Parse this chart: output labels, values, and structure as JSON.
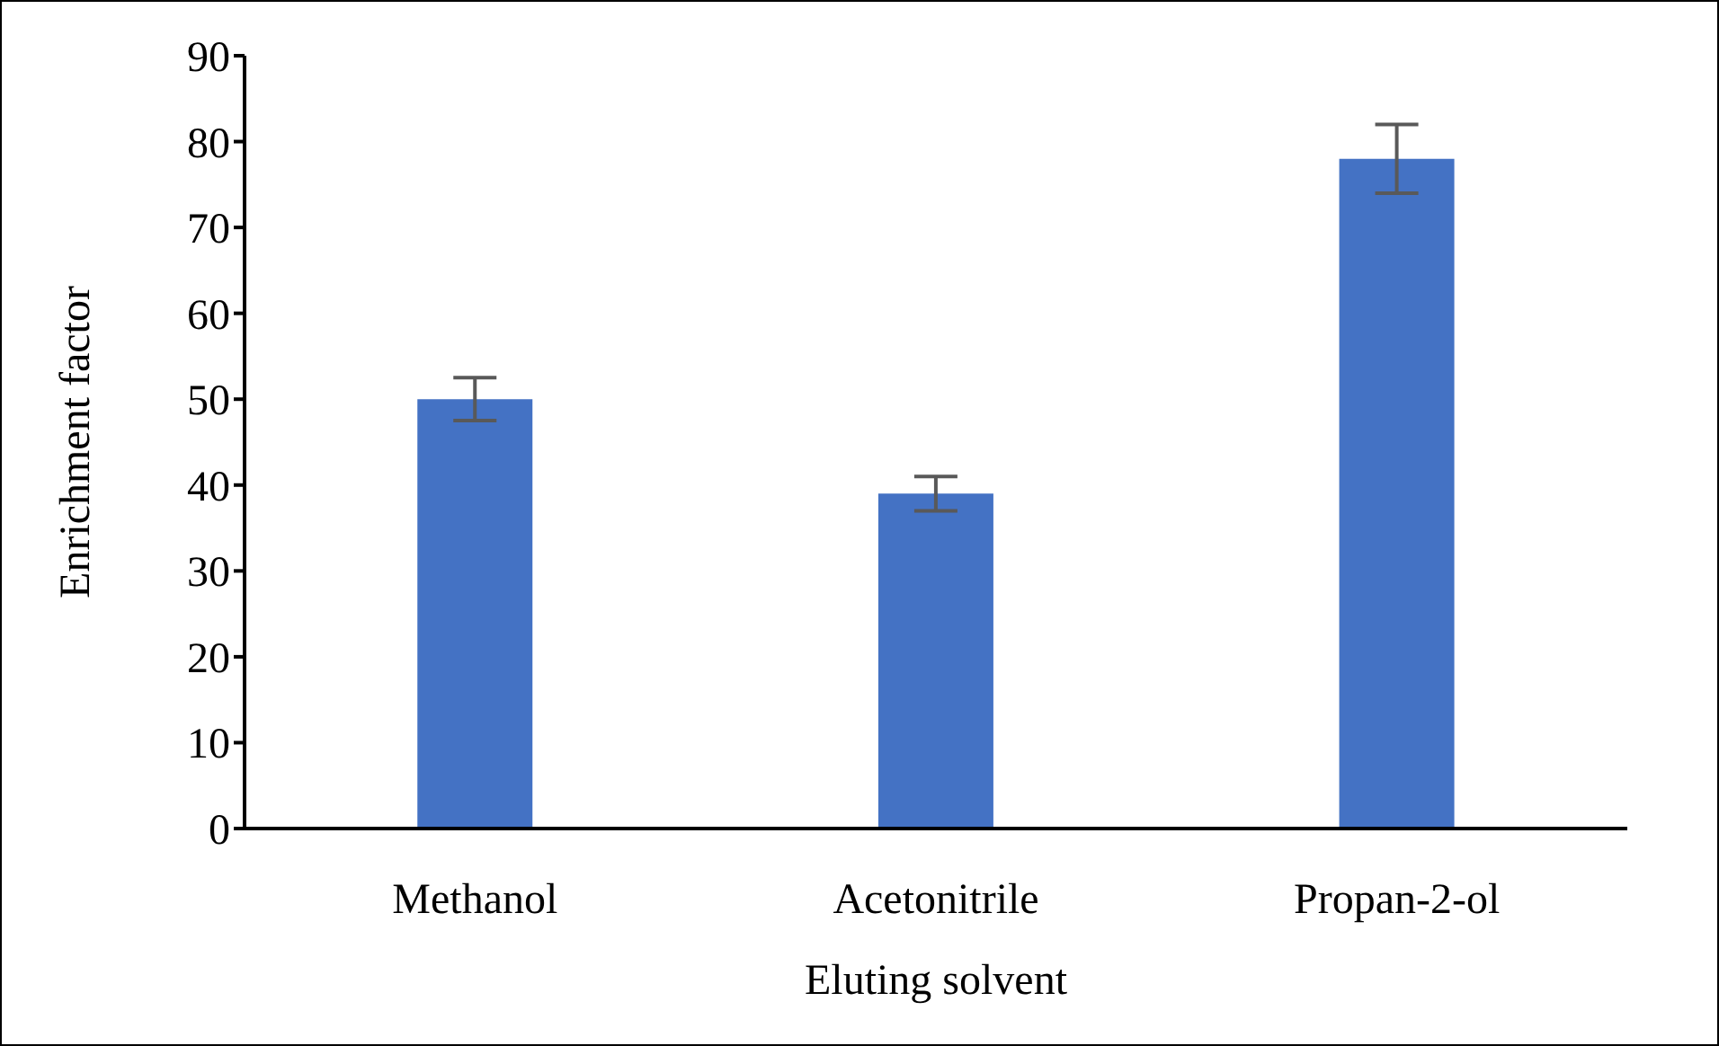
{
  "chart_data": {
    "type": "bar",
    "xlabel": "Eluting solvent",
    "ylabel": "Enrichment factor",
    "categories": [
      "Methanol",
      "Acetonitrile",
      "Propan-2-ol"
    ],
    "values": [
      50,
      39,
      78
    ],
    "errors": [
      2.5,
      2,
      4
    ],
    "color": "#4472c4",
    "ylim": [
      0,
      90
    ],
    "yticks": [
      0,
      10,
      20,
      30,
      40,
      50,
      60,
      70,
      80,
      90
    ],
    "grid": false,
    "legend": false
  }
}
